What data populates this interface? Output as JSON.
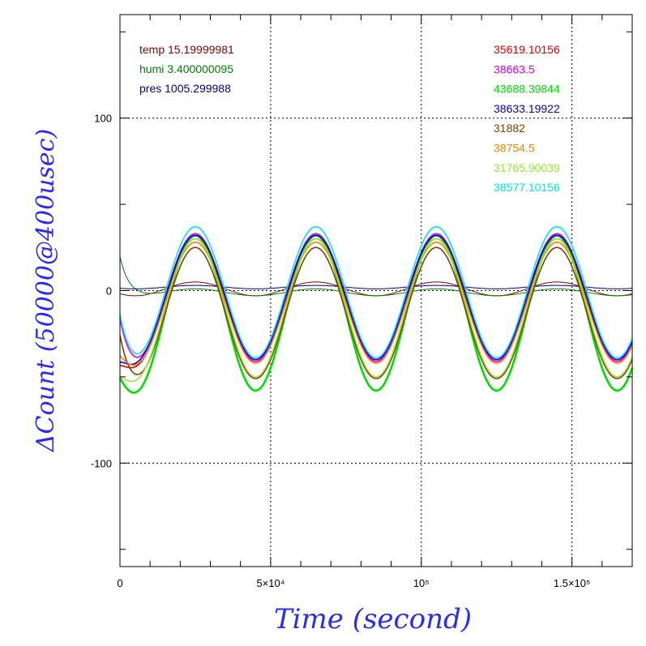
{
  "chart_data": {
    "type": "line",
    "xlabel": "Time (second)",
    "ylabel": "ΔCount (50000@400usec)",
    "xlim": [
      0,
      170000
    ],
    "ylim": [
      -160,
      160
    ],
    "x_ticks": [
      {
        "value": 0,
        "label": "0"
      },
      {
        "value": 50000,
        "label": "5×10⁴"
      },
      {
        "value": 100000,
        "label": "10⁵"
      },
      {
        "value": 150000,
        "label": "1.5×10⁵"
      }
    ],
    "y_ticks": [
      {
        "value": 100,
        "label": "100"
      },
      {
        "value": 0,
        "label": "0"
      },
      {
        "value": -100,
        "label": "-100"
      }
    ],
    "grid": true,
    "legend_left": [
      {
        "label": "temp 15.19999981",
        "color": "#8b0000"
      },
      {
        "label": "humi 3.400000095",
        "color": "#008000"
      },
      {
        "label": "pres 1005.299988",
        "color": "#000080"
      }
    ],
    "legend_right": [
      {
        "label": "35619.10156",
        "color": "#e00000"
      },
      {
        "label": "38663.5",
        "color": "#e000e0"
      },
      {
        "label": "43688.39844",
        "color": "#00e000"
      },
      {
        "label": "38633.19922",
        "color": "#0000e0"
      },
      {
        "label": "31882",
        "color": "#804000"
      },
      {
        "label": "38754.5",
        "color": "#ff8000"
      },
      {
        "label": "31765.90039",
        "color": "#99e633"
      },
      {
        "label": "38577.10156",
        "color": "#00e6e6"
      }
    ],
    "period": 40000,
    "phase_peak": 25000,
    "series": [
      {
        "name": "35619.10156",
        "color": "#e00000",
        "amplitude": 36,
        "offset": -6
      },
      {
        "name": "38663.5",
        "color": "#e000e0",
        "amplitude": 37,
        "offset": -4
      },
      {
        "name": "43688.39844",
        "color": "#00e000",
        "amplitude": 45,
        "offset": -13
      },
      {
        "name": "38633.19922",
        "color": "#0000e0",
        "amplitude": 36,
        "offset": -4
      },
      {
        "name": "31882",
        "color": "#804000",
        "amplitude": 38,
        "offset": -13
      },
      {
        "name": "38754.5",
        "color": "#ff8000",
        "amplitude": 35,
        "offset": -7
      },
      {
        "name": "31765.90039",
        "color": "#99e633",
        "amplitude": 40,
        "offset": -10
      },
      {
        "name": "38577.10156",
        "color": "#00e6e6",
        "amplitude": 38,
        "offset": -1
      }
    ],
    "env_series": [
      {
        "name": "temp",
        "color": "#8b0000",
        "amplitude": 4,
        "offset": 1
      },
      {
        "name": "humi",
        "color": "#008000",
        "amplitude": 2,
        "offset": -1
      },
      {
        "name": "pres",
        "color": "#000080",
        "amplitude": 1,
        "offset": 2
      }
    ]
  }
}
